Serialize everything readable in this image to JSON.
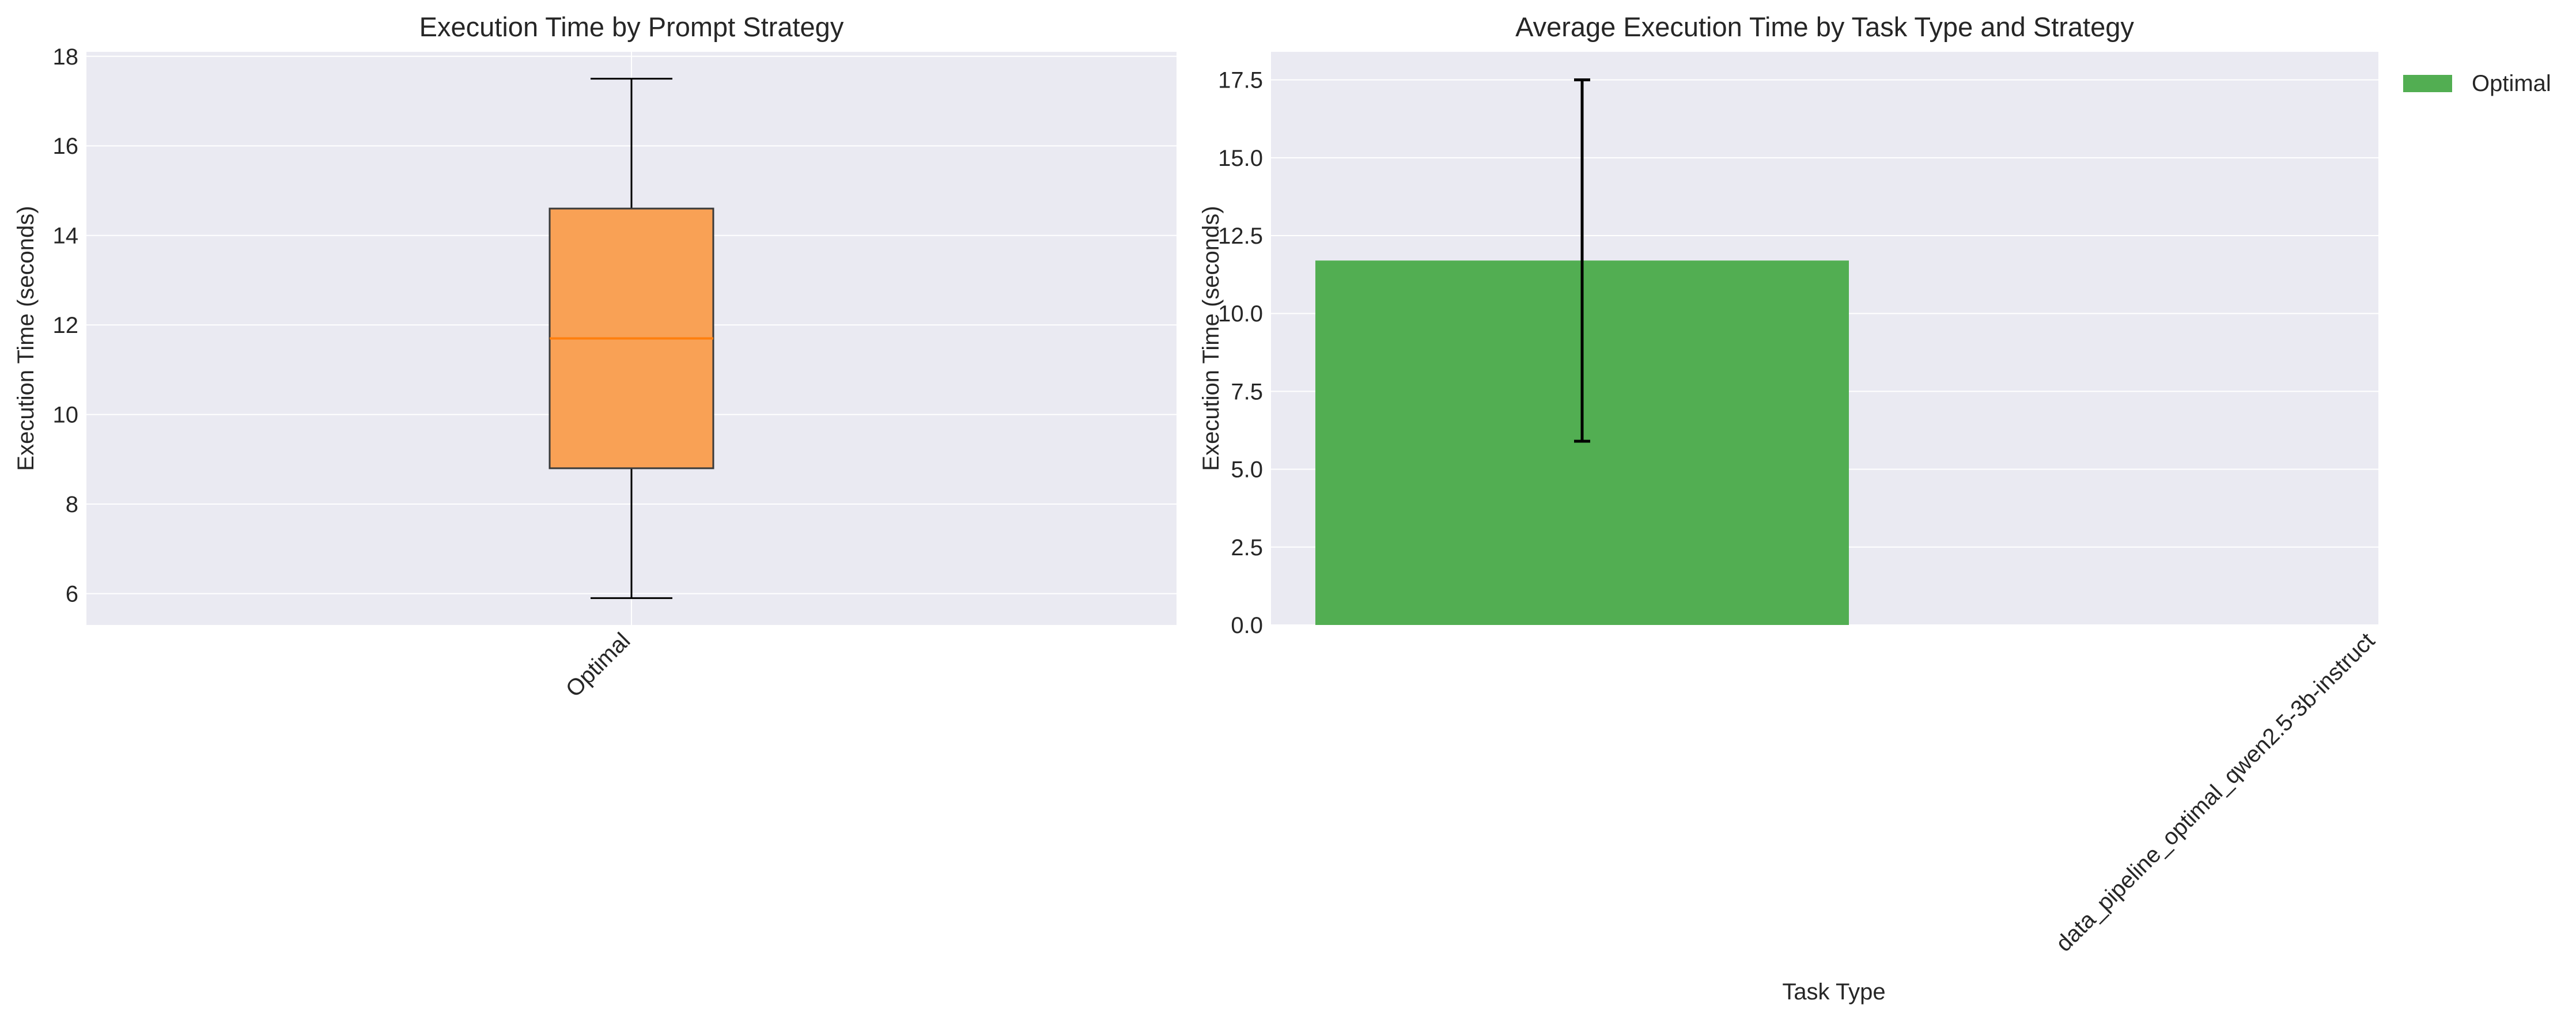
{
  "colors": {
    "plot_bg": "#eaeaf2",
    "grid": "#ffffff",
    "box_fill": "#f9a155",
    "box_edge": "#3a3a3a",
    "median": "#ff7f0e",
    "bar_fill": "#52ae52",
    "errorbar": "#000000"
  },
  "chart_data": [
    {
      "type": "box",
      "title": "Execution Time by Prompt Strategy",
      "xlabel": "",
      "ylabel": "Execution Time (seconds)",
      "categories": [
        "Optimal"
      ],
      "boxes": [
        {
          "category": "Optimal",
          "whisker_low": 5.9,
          "q1": 8.8,
          "median": 11.7,
          "q3": 14.6,
          "whisker_high": 17.5
        }
      ],
      "ylim": [
        5.3,
        18.1
      ],
      "yticks": [
        6,
        8,
        10,
        12,
        14,
        16,
        18
      ],
      "grid": true
    },
    {
      "type": "bar",
      "title": "Average Execution Time by Task Type and Strategy",
      "xlabel": "Task Type",
      "ylabel": "Execution Time (seconds)",
      "categories": [
        "data_pipeline_optimal_qwen2.5-3b-instruct"
      ],
      "series": [
        {
          "name": "Optimal",
          "values": [
            11.7
          ],
          "error": [
            5.8
          ]
        }
      ],
      "ylim": [
        0,
        18.4
      ],
      "yticks": [
        "0.0",
        "2.5",
        "5.0",
        "7.5",
        "10.0",
        "12.5",
        "15.0",
        "17.5"
      ],
      "grid": true,
      "legend": "upper-right-outside"
    }
  ]
}
